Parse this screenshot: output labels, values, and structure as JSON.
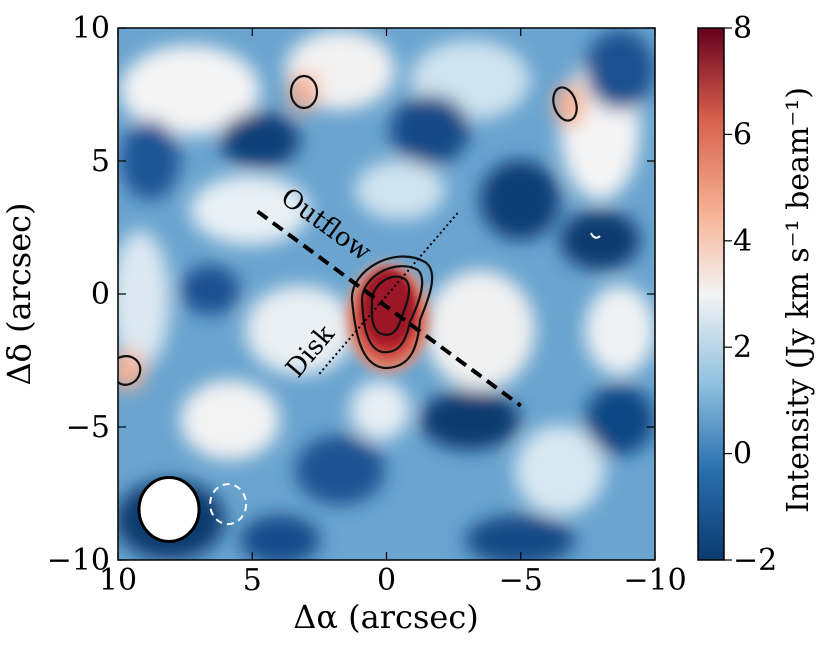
{
  "chart_data": {
    "type": "heatmap",
    "title": "",
    "xlabel": "Δα (arcsec)",
    "ylabel": "Δδ (arcsec)",
    "xlim": [
      10,
      -10
    ],
    "ylim": [
      -10,
      10
    ],
    "xticks": [
      10,
      5,
      0,
      -5,
      -10
    ],
    "yticks": [
      10,
      5,
      0,
      -5,
      -10
    ],
    "xtick_labels": [
      "10",
      "5",
      "0",
      "−5",
      "−10"
    ],
    "ytick_labels": [
      "10",
      "5",
      "0",
      "−5",
      "−10"
    ],
    "colorbar": {
      "label": "Intensity (Jy km s⁻¹ beam⁻¹)",
      "range": [
        -2,
        8
      ],
      "ticks": [
        -2,
        0,
        2,
        4,
        6,
        8
      ],
      "tick_labels": [
        "−2",
        "0",
        "2",
        "4",
        "6",
        "8"
      ],
      "colormap": "RdBu_r",
      "colors": [
        "#0b3a6e",
        "#2a6fae",
        "#8fc0de",
        "#f4f4f4",
        "#f6b396",
        "#d6604d",
        "#67001f"
      ]
    },
    "annotations": [
      {
        "text": "Outflow",
        "x_start": 4.8,
        "y_start": 3.1,
        "x_end": -5.0,
        "y_end": -4.2,
        "line_style": "dashed"
      },
      {
        "text": "Disk",
        "x_start": 2.5,
        "y_start": -3.0,
        "x_end": -2.7,
        "y_end": 3.1,
        "line_style": "dotted"
      }
    ],
    "contour_sources": [
      {
        "name": "central-source",
        "x": 0.0,
        "y": -0.6,
        "levels": 3
      },
      {
        "name": "north-source",
        "x": 3.1,
        "y": 7.6,
        "levels": 1
      },
      {
        "name": "northwest-source",
        "x": -6.6,
        "y": 7.1,
        "levels": 1
      },
      {
        "name": "east-edge-source",
        "x": 9.5,
        "y": -2.9,
        "levels": 1
      }
    ],
    "beams": [
      {
        "name": "primary-beam",
        "x": 8.1,
        "y": -8.1,
        "fill": "white",
        "style": "solid"
      },
      {
        "name": "secondary-beam",
        "x": 5.9,
        "y": -7.9,
        "fill": "none",
        "style": "dashed"
      }
    ]
  }
}
